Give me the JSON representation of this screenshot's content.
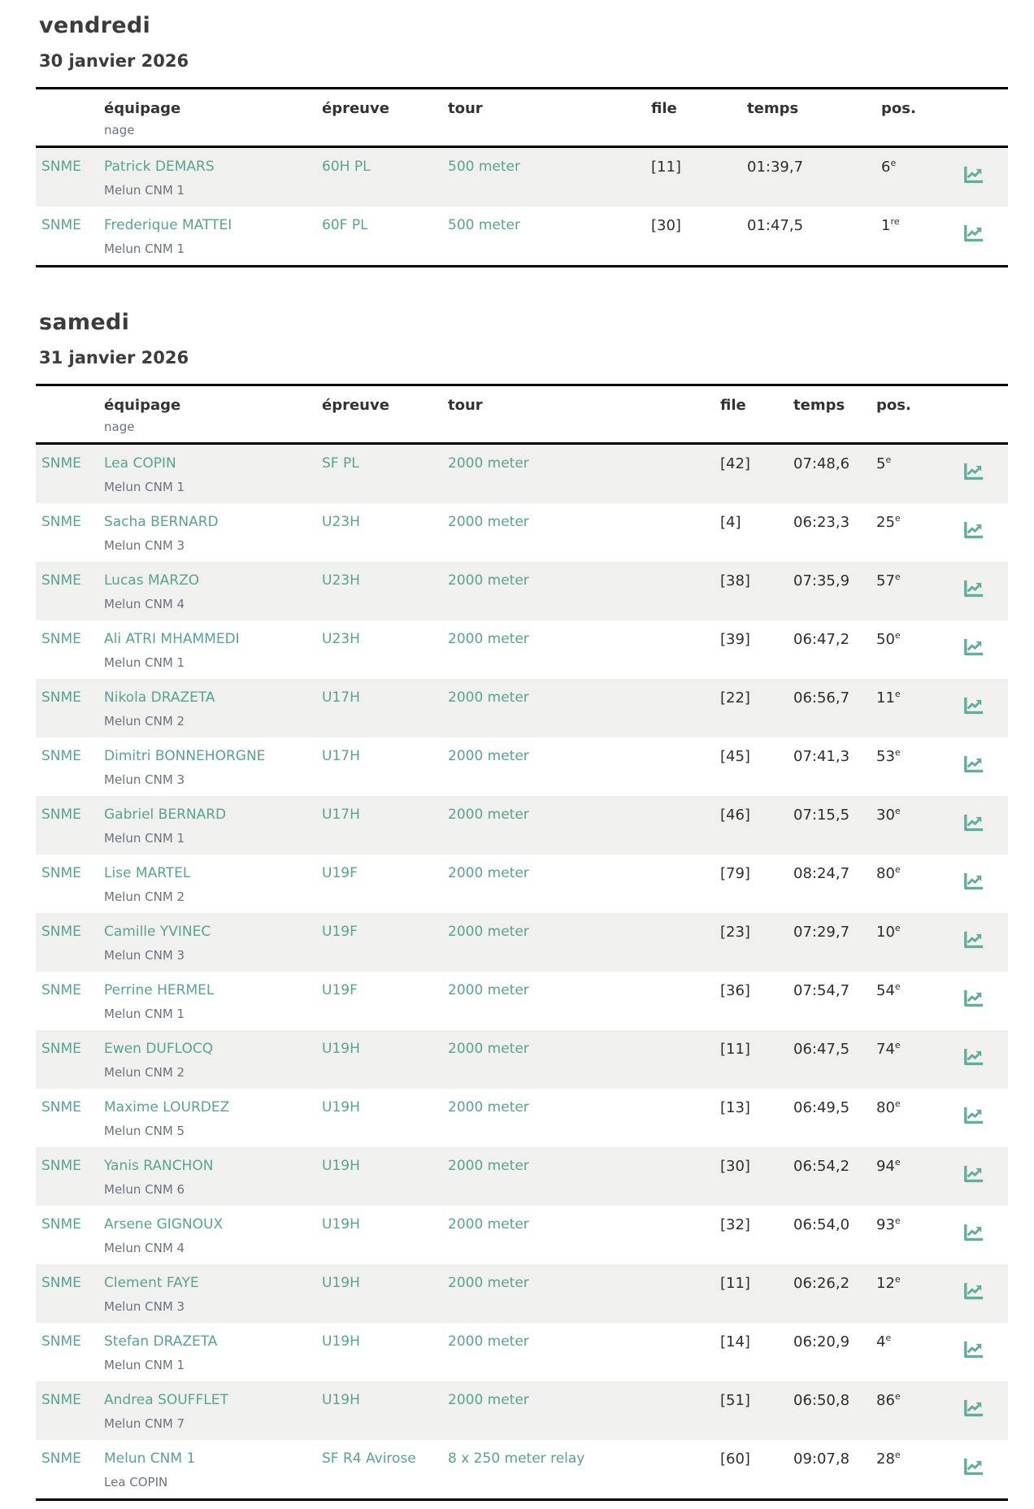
{
  "columns": {
    "equipage": "équipage",
    "nage": "nage",
    "epreuve": "épreuve",
    "tour": "tour",
    "file": "file",
    "temps": "temps",
    "pos": "pos."
  },
  "colors": {
    "link_teal": "#55a592",
    "icon_teal": "#62ad9b",
    "row_stripe": "#f0f0ee",
    "sub_text": "#6b737e",
    "heading_text": "#3c3c3c",
    "border_black": "#000000"
  },
  "icon": {
    "name": "trend-chart-icon"
  },
  "sections": [
    {
      "day": "vendredi",
      "date": "30 janvier 2026",
      "rows": [
        {
          "club": "SNME",
          "name": "Patrick DEMARS",
          "sub": "Melun CNM 1",
          "event": "60H PL",
          "tour": "500 meter",
          "file": "[11]",
          "temps": "01:39,7",
          "pos": "6",
          "pos_sup": "e"
        },
        {
          "club": "SNME",
          "name": "Frederique MATTEI",
          "sub": "Melun CNM 1",
          "event": "60F PL",
          "tour": "500 meter",
          "file": "[30]",
          "temps": "01:47,5",
          "pos": "1",
          "pos_sup": "re"
        }
      ]
    },
    {
      "day": "samedi",
      "date": "31 janvier 2026",
      "rows": [
        {
          "club": "SNME",
          "name": "Lea COPIN",
          "sub": "Melun CNM 1",
          "event": "SF PL",
          "tour": "2000 meter",
          "file": "[42]",
          "temps": "07:48,6",
          "pos": "5",
          "pos_sup": "e"
        },
        {
          "club": "SNME",
          "name": "Sacha BERNARD",
          "sub": "Melun CNM 3",
          "event": "U23H",
          "tour": "2000 meter",
          "file": "[4]",
          "temps": "06:23,3",
          "pos": "25",
          "pos_sup": "e"
        },
        {
          "club": "SNME",
          "name": "Lucas MARZO",
          "sub": "Melun CNM 4",
          "event": "U23H",
          "tour": "2000 meter",
          "file": "[38]",
          "temps": "07:35,9",
          "pos": "57",
          "pos_sup": "e"
        },
        {
          "club": "SNME",
          "name": "Ali ATRI MHAMMEDI",
          "sub": "Melun CNM 1",
          "event": "U23H",
          "tour": "2000 meter",
          "file": "[39]",
          "temps": "06:47,2",
          "pos": "50",
          "pos_sup": "e"
        },
        {
          "club": "SNME",
          "name": "Nikola DRAZETA",
          "sub": "Melun CNM 2",
          "event": "U17H",
          "tour": "2000 meter",
          "file": "[22]",
          "temps": "06:56,7",
          "pos": "11",
          "pos_sup": "e"
        },
        {
          "club": "SNME",
          "name": "Dimitri BONNEHORGNE",
          "sub": "Melun CNM 3",
          "event": "U17H",
          "tour": "2000 meter",
          "file": "[45]",
          "temps": "07:41,3",
          "pos": "53",
          "pos_sup": "e"
        },
        {
          "club": "SNME",
          "name": "Gabriel BERNARD",
          "sub": "Melun CNM 1",
          "event": "U17H",
          "tour": "2000 meter",
          "file": "[46]",
          "temps": "07:15,5",
          "pos": "30",
          "pos_sup": "e"
        },
        {
          "club": "SNME",
          "name": "Lise MARTEL",
          "sub": "Melun CNM 2",
          "event": "U19F",
          "tour": "2000 meter",
          "file": "[79]",
          "temps": "08:24,7",
          "pos": "80",
          "pos_sup": "e"
        },
        {
          "club": "SNME",
          "name": "Camille YVINEC",
          "sub": "Melun CNM 3",
          "event": "U19F",
          "tour": "2000 meter",
          "file": "[23]",
          "temps": "07:29,7",
          "pos": "10",
          "pos_sup": "e"
        },
        {
          "club": "SNME",
          "name": "Perrine HERMEL",
          "sub": "Melun CNM 1",
          "event": "U19F",
          "tour": "2000 meter",
          "file": "[36]",
          "temps": "07:54,7",
          "pos": "54",
          "pos_sup": "e"
        },
        {
          "club": "SNME",
          "name": "Ewen DUFLOCQ",
          "sub": "Melun CNM 2",
          "event": "U19H",
          "tour": "2000 meter",
          "file": "[11]",
          "temps": "06:47,5",
          "pos": "74",
          "pos_sup": "e"
        },
        {
          "club": "SNME",
          "name": "Maxime LOURDEZ",
          "sub": "Melun CNM 5",
          "event": "U19H",
          "tour": "2000 meter",
          "file": "[13]",
          "temps": "06:49,5",
          "pos": "80",
          "pos_sup": "e"
        },
        {
          "club": "SNME",
          "name": "Yanis RANCHON",
          "sub": "Melun CNM 6",
          "event": "U19H",
          "tour": "2000 meter",
          "file": "[30]",
          "temps": "06:54,2",
          "pos": "94",
          "pos_sup": "e"
        },
        {
          "club": "SNME",
          "name": "Arsene GIGNOUX",
          "sub": "Melun CNM 4",
          "event": "U19H",
          "tour": "2000 meter",
          "file": "[32]",
          "temps": "06:54,0",
          "pos": "93",
          "pos_sup": "e"
        },
        {
          "club": "SNME",
          "name": "Clement FAYE",
          "sub": "Melun CNM 3",
          "event": "U19H",
          "tour": "2000 meter",
          "file": "[11]",
          "temps": "06:26,2",
          "pos": "12",
          "pos_sup": "e"
        },
        {
          "club": "SNME",
          "name": "Stefan DRAZETA",
          "sub": "Melun CNM 1",
          "event": "U19H",
          "tour": "2000 meter",
          "file": "[14]",
          "temps": "06:20,9",
          "pos": "4",
          "pos_sup": "e"
        },
        {
          "club": "SNME",
          "name": "Andrea SOUFFLET",
          "sub": "Melun CNM 7",
          "event": "U19H",
          "tour": "2000 meter",
          "file": "[51]",
          "temps": "06:50,8",
          "pos": "86",
          "pos_sup": "e"
        },
        {
          "club": "SNME",
          "name": "Melun CNM 1",
          "sub": "Lea COPIN",
          "event": "SF R4 Avirose",
          "tour": "8 x 250 meter relay",
          "file": "[60]",
          "temps": "09:07,8",
          "pos": "28",
          "pos_sup": "e"
        }
      ]
    }
  ]
}
